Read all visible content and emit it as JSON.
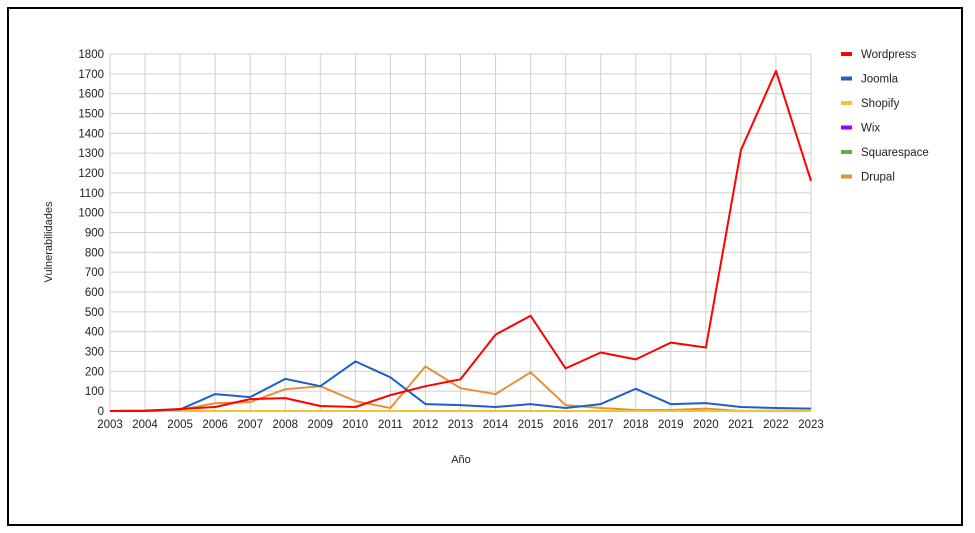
{
  "chart_data": {
    "type": "line",
    "title": "",
    "xlabel": "Año",
    "ylabel": "Vulnerabilidades",
    "categories": [
      "2003",
      "2004",
      "2005",
      "2006",
      "2007",
      "2008",
      "2009",
      "2010",
      "2011",
      "2012",
      "2013",
      "2014",
      "2015",
      "2016",
      "2017",
      "2018",
      "2019",
      "2020",
      "2021",
      "2022",
      "2023"
    ],
    "ylim": [
      0,
      1800
    ],
    "yticks": [
      0,
      100,
      200,
      300,
      400,
      500,
      600,
      700,
      800,
      900,
      1000,
      1100,
      1200,
      1300,
      1400,
      1500,
      1600,
      1700,
      1800
    ],
    "grid": true,
    "legend_position": "right",
    "series": [
      {
        "name": "Wordpress",
        "color": "#ff0000",
        "values": [
          0,
          2,
          10,
          20,
          60,
          65,
          25,
          20,
          80,
          125,
          160,
          385,
          480,
          215,
          295,
          260,
          345,
          320,
          1315,
          1715,
          1160
        ]
      },
      {
        "name": "Joomla",
        "color": "#1f5fc5",
        "values": [
          0,
          0,
          8,
          85,
          70,
          162,
          125,
          250,
          170,
          35,
          30,
          20,
          35,
          15,
          35,
          112,
          35,
          40,
          20,
          15,
          12
        ]
      },
      {
        "name": "Shopify",
        "color": "#f4c430",
        "values": [
          0,
          0,
          0,
          0,
          0,
          0,
          0,
          0,
          0,
          0,
          0,
          0,
          0,
          0,
          0,
          0,
          0,
          0,
          0,
          0,
          0
        ]
      },
      {
        "name": "Wix",
        "color": "#9900ff",
        "values": [
          0,
          0,
          0,
          0,
          0,
          0,
          0,
          0,
          0,
          0,
          0,
          0,
          0,
          0,
          0,
          0,
          0,
          0,
          0,
          0,
          0
        ]
      },
      {
        "name": "Squarespace",
        "color": "#6aa84f",
        "values": [
          0,
          0,
          0,
          0,
          0,
          0,
          0,
          0,
          0,
          0,
          0,
          0,
          0,
          0,
          0,
          0,
          0,
          0,
          0,
          0,
          0
        ]
      },
      {
        "name": "Drupal",
        "color": "#e69138",
        "values": [
          0,
          0,
          5,
          40,
          45,
          110,
          125,
          50,
          15,
          225,
          115,
          85,
          195,
          30,
          15,
          5,
          5,
          12,
          0,
          2,
          0
        ]
      }
    ]
  }
}
